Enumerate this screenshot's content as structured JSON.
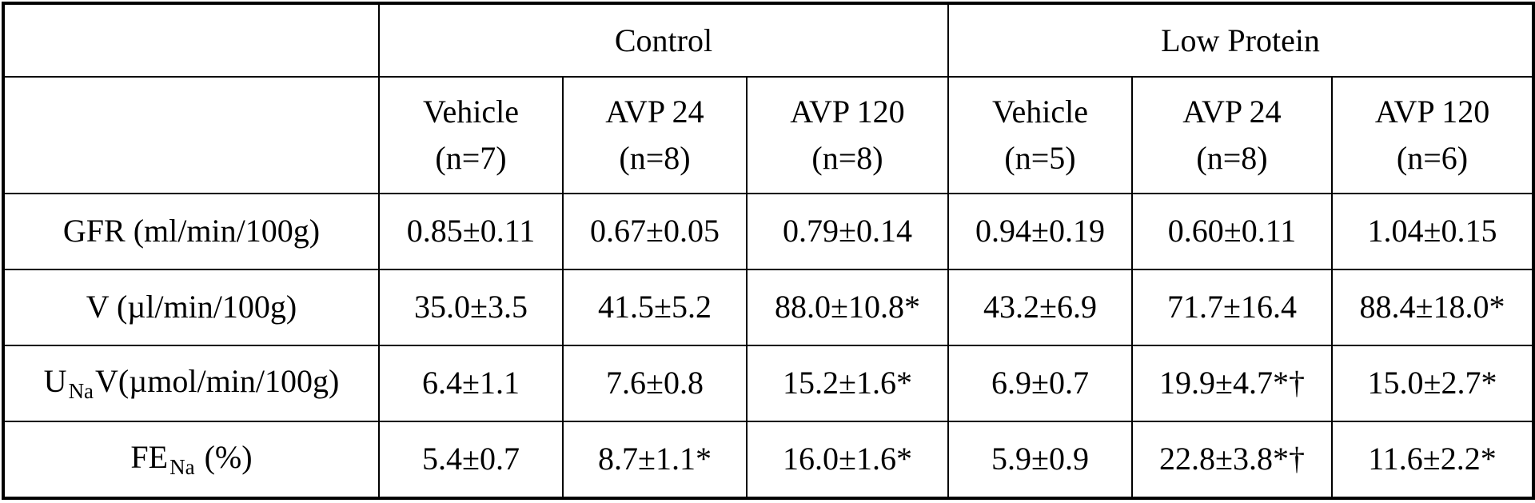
{
  "groups": [
    {
      "label": "Control"
    },
    {
      "label": "Low Protein"
    }
  ],
  "columns": [
    {
      "name": "Vehicle",
      "n": "(n=7)"
    },
    {
      "name": "AVP 24",
      "n": "(n=8)"
    },
    {
      "name": "AVP 120",
      "n": "(n=8)"
    },
    {
      "name": "Vehicle",
      "n": "(n=5)"
    },
    {
      "name": "AVP 24",
      "n": "(n=8)"
    },
    {
      "name": "AVP 120",
      "n": "(n=6)"
    }
  ],
  "rows": [
    {
      "label": "GFR (ml/min/100g)",
      "values": [
        "0.85±0.11",
        "0.67±0.05",
        "0.79±0.14",
        "0.94±0.19",
        "0.60±0.11",
        "1.04±0.15"
      ]
    },
    {
      "label": "V (µl/min/100g)",
      "values": [
        "35.0±3.5",
        "41.5±5.2",
        "88.0±10.8*",
        "43.2±6.9",
        "71.7±16.4",
        "88.4±18.0*"
      ]
    },
    {
      "label_main": "U",
      "label_sub": "Na",
      "label_rest": "V(µmol/min/100g)",
      "values": [
        "6.4±1.1",
        "7.6±0.8",
        "15.2±1.6*",
        "6.9±0.7",
        "19.9±4.7*†",
        "15.0±2.7*"
      ]
    },
    {
      "label_main": "FE",
      "label_sub": "Na",
      "label_rest": " (%)",
      "values": [
        "5.4±0.7",
        "8.7±1.1*",
        "16.0±1.6*",
        "5.9±0.9",
        "22.8±3.8*†",
        "11.6±2.2*"
      ]
    }
  ]
}
